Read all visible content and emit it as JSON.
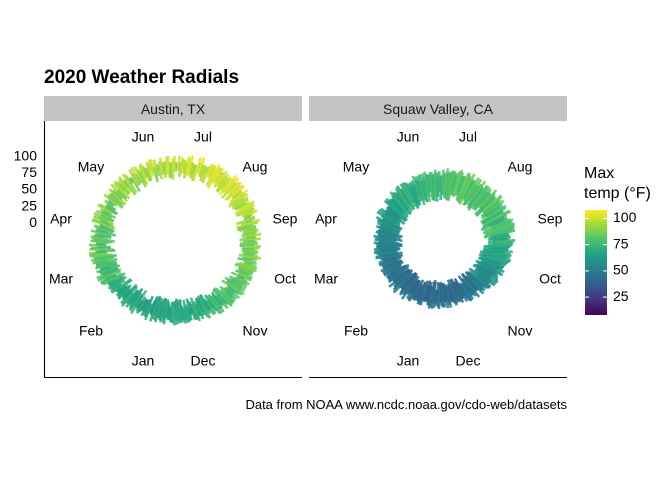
{
  "chart_data": {
    "type": "radial-bar",
    "title": "2020 Weather Radials",
    "caption": "Data from NOAA www.ncdc.noaa.gov/cdo-web/datasets",
    "months": [
      "Jan",
      "Feb",
      "Mar",
      "Apr",
      "May",
      "Jun",
      "Jul",
      "Aug",
      "Sep",
      "Oct",
      "Nov",
      "Dec"
    ],
    "radial_ticks": [
      0,
      25,
      50,
      75,
      100
    ],
    "radial_range": [
      -40,
      110
    ],
    "legend": {
      "title_line1": "Max",
      "title_line2": "temp (°F)",
      "ticks": [
        25,
        50,
        75,
        100
      ],
      "range": [
        8,
        108
      ],
      "colors": [
        "#440154",
        "#46327e",
        "#365c8d",
        "#277f8e",
        "#1fa187",
        "#4ac16d",
        "#a0da39",
        "#fde725"
      ]
    },
    "panels": [
      {
        "name": "Austin, TX",
        "monthly": [
          {
            "month": "Jan",
            "min": 40,
            "max": 66
          },
          {
            "month": "Feb",
            "min": 42,
            "max": 68
          },
          {
            "month": "Mar",
            "min": 52,
            "max": 77
          },
          {
            "month": "Apr",
            "min": 57,
            "max": 82
          },
          {
            "month": "May",
            "min": 66,
            "max": 88
          },
          {
            "month": "Jun",
            "min": 73,
            "max": 94
          },
          {
            "month": "Jul",
            "min": 75,
            "max": 99
          },
          {
            "month": "Aug",
            "min": 76,
            "max": 100
          },
          {
            "month": "Sep",
            "min": 68,
            "max": 90
          },
          {
            "month": "Oct",
            "min": 60,
            "max": 84
          },
          {
            "month": "Nov",
            "min": 51,
            "max": 76
          },
          {
            "month": "Dec",
            "min": 42,
            "max": 66
          }
        ]
      },
      {
        "name": "Squaw Valley, CA",
        "monthly": [
          {
            "month": "Jan",
            "min": 14,
            "max": 42
          },
          {
            "month": "Feb",
            "min": 16,
            "max": 46
          },
          {
            "month": "Mar",
            "min": 18,
            "max": 47
          },
          {
            "month": "Apr",
            "min": 24,
            "max": 55
          },
          {
            "month": "May",
            "min": 32,
            "max": 65
          },
          {
            "month": "Jun",
            "min": 38,
            "max": 72
          },
          {
            "month": "Jul",
            "min": 44,
            "max": 80
          },
          {
            "month": "Aug",
            "min": 44,
            "max": 80
          },
          {
            "month": "Sep",
            "min": 38,
            "max": 75
          },
          {
            "month": "Oct",
            "min": 28,
            "max": 62
          },
          {
            "month": "Nov",
            "min": 18,
            "max": 48
          },
          {
            "month": "Dec",
            "min": 15,
            "max": 42
          }
        ]
      }
    ]
  }
}
